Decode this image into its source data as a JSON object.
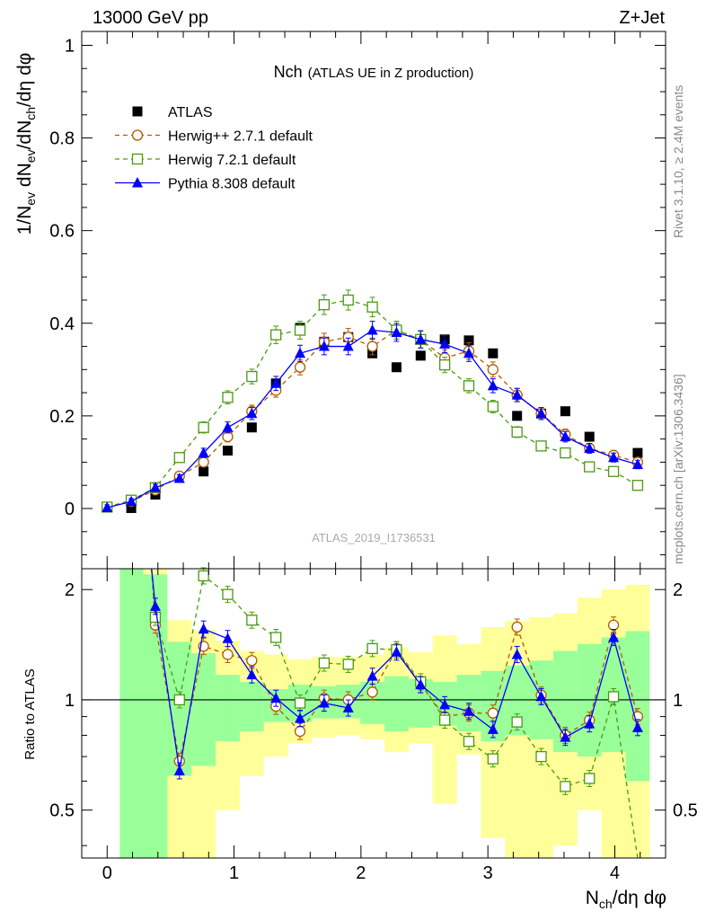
{
  "header": {
    "left": "13000 GeV pp",
    "right": "Z+Jet"
  },
  "side": {
    "rivet": "Rivet 3.1.10, ≥ 2.4M events",
    "mcplots": "mcplots.cern.ch [arXiv:1306.3436]"
  },
  "watermark": "ATLAS_2019_I1736531",
  "colors": {
    "atlas": "#000000",
    "herwigpp": "#b15a00",
    "herwig7": "#4a9a10",
    "pythia": "#0000ff",
    "band_green": "#99ff99",
    "band_yellow": "#ffff99"
  },
  "chart_data": [
    {
      "type": "scatter",
      "title": "Nch",
      "subtitle": "(ATLAS UE in Z production)",
      "ylabel": "1/N_ev dN_ev/dN_ch/dη dφ",
      "xlim": [
        -0.2,
        4.4
      ],
      "ylim": [
        -0.13,
        1.03
      ],
      "yticks": [
        "0",
        "0.2",
        "0.4",
        "0.6",
        "0.8",
        "1"
      ],
      "legend_position": "top-left",
      "x": [
        0.0,
        0.19,
        0.38,
        0.57,
        0.76,
        0.95,
        1.14,
        1.33,
        1.52,
        1.71,
        1.9,
        2.09,
        2.28,
        2.47,
        2.66,
        2.85,
        3.04,
        3.23,
        3.42,
        3.61,
        3.8,
        3.99,
        4.18
      ],
      "series": [
        {
          "name": "ATLAS",
          "key": "atlas",
          "marker": "square-filled",
          "values": [
            0.002,
            0.001,
            0.03,
            0.11,
            0.08,
            0.125,
            0.175,
            0.27,
            0.39,
            0.36,
            0.37,
            0.335,
            0.305,
            0.33,
            0.365,
            0.363,
            0.335,
            0.2,
            0.205,
            0.21,
            0.155,
            0.08,
            0.12
          ]
        },
        {
          "name": "Herwig++ 2.7.1 default",
          "key": "herwigpp",
          "marker": "circle-open",
          "dash": "5,4",
          "values": [
            0.003,
            0.015,
            0.04,
            0.07,
            0.1,
            0.155,
            0.21,
            0.255,
            0.305,
            0.36,
            0.37,
            0.35,
            0.385,
            0.365,
            0.325,
            0.34,
            0.3,
            0.245,
            0.205,
            0.16,
            0.13,
            0.115,
            0.1
          ]
        },
        {
          "name": "Herwig 7.2.1 default",
          "key": "herwig7",
          "marker": "square-open",
          "dash": "5,4",
          "values": [
            0.003,
            0.018,
            0.045,
            0.11,
            0.175,
            0.24,
            0.285,
            0.375,
            0.385,
            0.44,
            0.45,
            0.435,
            0.385,
            0.365,
            0.31,
            0.265,
            0.22,
            0.165,
            0.135,
            0.12,
            0.09,
            0.08,
            0.05
          ]
        },
        {
          "name": "Pythia 8.308 default",
          "key": "pythia",
          "marker": "triangle-filled",
          "dash": "",
          "values": [
            0.002,
            0.015,
            0.045,
            0.065,
            0.12,
            0.175,
            0.205,
            0.27,
            0.335,
            0.35,
            0.35,
            0.385,
            0.38,
            0.365,
            0.355,
            0.335,
            0.265,
            0.245,
            0.205,
            0.155,
            0.13,
            0.11,
            0.095
          ]
        }
      ]
    },
    {
      "type": "line",
      "ylabel": "Ratio to ATLAS",
      "xlabel": "N_ch/dη dφ",
      "xlim": [
        -0.2,
        4.4
      ],
      "ylim": [
        0.37,
        2.28
      ],
      "xticks": [
        "0",
        "1",
        "2",
        "3",
        "4"
      ],
      "yticks": [
        "0.5",
        "1",
        "2"
      ],
      "x": [
        0.38,
        0.57,
        0.76,
        0.95,
        1.14,
        1.33,
        1.52,
        1.71,
        1.9,
        2.09,
        2.28,
        2.47,
        2.66,
        2.85,
        3.04,
        3.23,
        3.42,
        3.61,
        3.8,
        3.99,
        4.18
      ],
      "band_edges": [
        0.1,
        0.285,
        0.475,
        0.665,
        0.855,
        1.045,
        1.235,
        1.425,
        1.615,
        1.805,
        1.995,
        2.185,
        2.375,
        2.565,
        2.755,
        2.945,
        3.135,
        3.325,
        3.515,
        3.705,
        3.895,
        4.085,
        4.275
      ],
      "band_green": [
        [
          0.37,
          2.28
        ],
        [
          0.37,
          2.2
        ],
        [
          0.62,
          1.44
        ],
        [
          0.66,
          1.34
        ],
        [
          0.77,
          1.17
        ],
        [
          0.82,
          1.12
        ],
        [
          0.87,
          1.07
        ],
        [
          0.87,
          1.1
        ],
        [
          0.89,
          1.09
        ],
        [
          0.89,
          1.1
        ],
        [
          0.86,
          1.12
        ],
        [
          0.82,
          1.16
        ],
        [
          0.84,
          1.14
        ],
        [
          0.85,
          1.12
        ],
        [
          0.82,
          1.17
        ],
        [
          0.77,
          1.2
        ],
        [
          0.8,
          1.24
        ],
        [
          0.78,
          1.28
        ],
        [
          0.72,
          1.36
        ],
        [
          0.7,
          1.42
        ],
        [
          0.72,
          1.48
        ],
        [
          0.6,
          1.54
        ]
      ],
      "band_yellow": [
        [
          0.37,
          2.28
        ],
        [
          0.37,
          2.28
        ],
        [
          0.37,
          1.65
        ],
        [
          0.37,
          1.55
        ],
        [
          0.5,
          1.45
        ],
        [
          0.62,
          1.36
        ],
        [
          0.7,
          1.33
        ],
        [
          0.76,
          1.29
        ],
        [
          0.79,
          1.31
        ],
        [
          0.8,
          1.31
        ],
        [
          0.78,
          1.33
        ],
        [
          0.72,
          1.39
        ],
        [
          0.76,
          1.35
        ],
        [
          0.52,
          1.5
        ],
        [
          0.71,
          1.42
        ],
        [
          0.42,
          1.58
        ],
        [
          0.37,
          1.64
        ],
        [
          0.37,
          1.68
        ],
        [
          0.4,
          1.72
        ],
        [
          0.5,
          1.9
        ],
        [
          0.37,
          2.0
        ],
        [
          0.37,
          2.06
        ]
      ],
      "series": [
        {
          "name": "Herwig++ 2.7.1 default",
          "key": "herwigpp",
          "marker": "circle-open",
          "dash": "5,4",
          "values": [
            1.6,
            0.68,
            1.4,
            1.33,
            1.28,
            0.96,
            0.82,
            1.01,
            1.0,
            1.05,
            1.37,
            1.1,
            0.9,
            0.92,
            0.92,
            1.58,
            1.03,
            0.8,
            0.88,
            1.6,
            0.9
          ]
        },
        {
          "name": "Herwig 7.2.1 default",
          "key": "herwig7",
          "marker": "square-open",
          "dash": "5,4",
          "values": [
            1.68,
            1.0,
            2.18,
            1.94,
            1.65,
            1.48,
            0.98,
            1.26,
            1.25,
            1.38,
            1.37,
            1.12,
            0.88,
            0.77,
            0.69,
            0.87,
            0.7,
            0.58,
            0.61,
            1.02,
            0.37
          ]
        },
        {
          "name": "Pythia 8.308 default",
          "key": "pythia",
          "marker": "triangle-filled",
          "dash": "",
          "values": [
            1.8,
            0.64,
            1.56,
            1.47,
            1.17,
            1.01,
            0.89,
            0.98,
            0.95,
            1.16,
            1.35,
            1.1,
            0.97,
            0.93,
            0.83,
            1.33,
            1.02,
            0.79,
            0.86,
            1.48,
            0.84
          ]
        }
      ]
    }
  ]
}
